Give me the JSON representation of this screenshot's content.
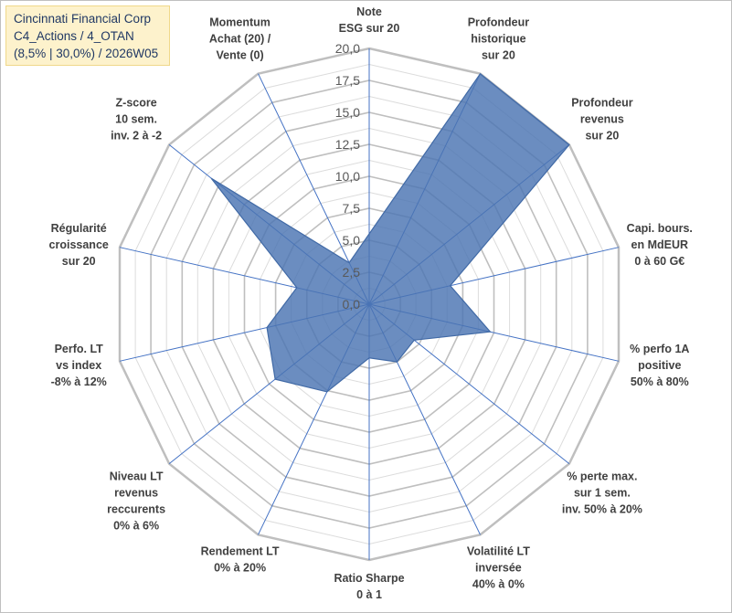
{
  "title": {
    "line1": "Cincinnati Financial Corp",
    "line2": "C4_Actions / 4_OTAN",
    "line3": "(8,5% | 30,0%) / 2026W05"
  },
  "chart_data": {
    "type": "radar",
    "scale": {
      "min": 0,
      "max": 20,
      "step": 2.5
    },
    "tick_labels": [
      "0,0",
      "2,5",
      "5,0",
      "7,5",
      "10,0",
      "12,5",
      "15,0",
      "17,5",
      "20,0"
    ],
    "axes": [
      {
        "label": [
          "Note",
          "ESG sur 20"
        ],
        "value": 5.5
      },
      {
        "label": [
          "Profondeur",
          "historique",
          "sur 20"
        ],
        "value": 20
      },
      {
        "label": [
          "Profondeur",
          "revenus",
          "sur 20"
        ],
        "value": 20
      },
      {
        "label": [
          "Capi. bours.",
          "en MdEUR",
          "0 à 60 G€"
        ],
        "value": 6.5
      },
      {
        "label": [
          "% perfo 1A",
          "positive",
          "50% à 80%"
        ],
        "value": 9.7
      },
      {
        "label": [
          "% perte max.",
          "sur 1 sem.",
          "inv. 50% à 20%"
        ],
        "value": 4.5
      },
      {
        "label": [
          "Volatilité LT",
          "inversée",
          "40% à 0%"
        ],
        "value": 5.0
      },
      {
        "label": [
          "Ratio Sharpe",
          "0 à 1"
        ],
        "value": 4.2
      },
      {
        "label": [
          "Rendement LT",
          "0% à 20%"
        ],
        "value": 7.6
      },
      {
        "label": [
          "Niveau LT",
          "revenus",
          "reccurents",
          "0% à 6%"
        ],
        "value": 9.4
      },
      {
        "label": [
          "Perfo. LT",
          "vs index",
          "-8% à 12%"
        ],
        "value": 8.2
      },
      {
        "label": [
          "Régularité",
          "croissance",
          "sur 20"
        ],
        "value": 5.8
      },
      {
        "label": [
          "Z-score",
          "10 sem.",
          "inv. 2 à -2"
        ],
        "value": 15.8
      },
      {
        "label": [
          "Momentum",
          "Achat (20) /",
          "Vente (0)"
        ],
        "value": 3.6
      }
    ],
    "colors": {
      "fill": "#4a74b2",
      "stroke": "#416aa6",
      "grid_major": "#bfbfbf",
      "grid_minor": "#dcdcdc",
      "spoke": "#4472c4"
    }
  }
}
